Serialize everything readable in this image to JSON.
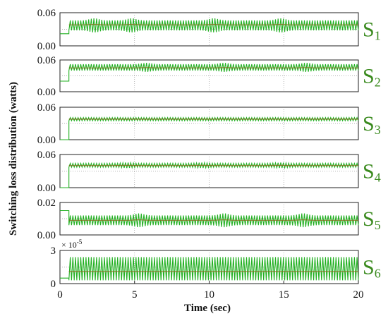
{
  "chart_data": {
    "type": "line",
    "ylabel": "Switching loss distribution (watts)",
    "xlabel": "Time (sec)",
    "xlim": [
      0,
      20
    ],
    "x_ticks": [
      "0",
      "5",
      "10",
      "15",
      "20"
    ],
    "grid": true,
    "line_color": "#22b022",
    "panels": [
      {
        "label_main": "S",
        "label_sub": "1",
        "ylim": [
          0,
          0.06
        ],
        "y_ticks": [
          "0.00",
          "0.06"
        ],
        "pre_level": 0.022,
        "level": 0.038,
        "low": 0.028,
        "high": 0.046,
        "wobble_at": [
          2.3,
          4.8,
          10.3,
          14.8
        ]
      },
      {
        "label_main": "S",
        "label_sub": "2",
        "ylim": [
          0,
          0.06
        ],
        "y_ticks": [
          "0.00",
          "0.06"
        ],
        "pre_level": 0.02,
        "level": 0.045,
        "low": 0.04,
        "high": 0.052,
        "wobble_at": [
          5.8,
          11.0,
          16.5
        ]
      },
      {
        "label_main": "S",
        "label_sub": "3",
        "ylim": [
          0,
          0.06
        ],
        "y_ticks": [
          "0.00",
          "0.06"
        ],
        "pre_level": 0.0,
        "level": 0.038,
        "low": 0.035,
        "high": 0.041,
        "wobble_at": []
      },
      {
        "label_main": "S",
        "label_sub": "4",
        "ylim": [
          0,
          0.06
        ],
        "y_ticks": [
          "0.00",
          "0.06"
        ],
        "pre_level": 0.0,
        "level": 0.04,
        "low": 0.037,
        "high": 0.044,
        "wobble_at": [
          4.5,
          9.5,
          14.8
        ]
      },
      {
        "label_main": "S",
        "label_sub": "5",
        "ylim": [
          0,
          0.02
        ],
        "y_ticks": [
          "0.00",
          "0.02"
        ],
        "pre_level": 0.015,
        "level": 0.009,
        "low": 0.006,
        "high": 0.012,
        "wobble_at": [
          5.3,
          11.0,
          16.3
        ]
      },
      {
        "label_main": "S",
        "label_sub": "6",
        "ylim": [
          0,
          3
        ],
        "y_ticks": [
          "0",
          "3"
        ],
        "exponent": "× 10",
        "exponent_power": "-5",
        "pre_level": 0.5,
        "level": 1.1,
        "low": 0.3,
        "high": 2.4,
        "wobble_at": []
      }
    ]
  }
}
